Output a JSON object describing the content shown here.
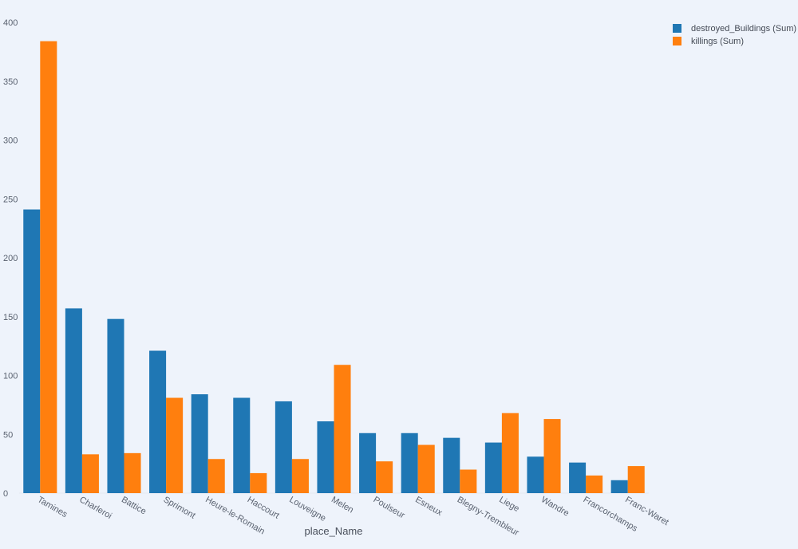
{
  "chart_data": {
    "type": "bar",
    "xlabel": "place_Name",
    "ylabel": "",
    "ylim": [
      0,
      400
    ],
    "yticks": [
      0,
      50,
      100,
      150,
      200,
      250,
      300,
      350,
      400
    ],
    "grid": false,
    "legend_position": "top-right",
    "categories": [
      "Tamines",
      "Charleroi",
      "Battice",
      "Sprimont",
      "Heure-le-Romain",
      "Haccourt",
      "Louveigne",
      "Melen",
      "Poulseur",
      "Esneux",
      "Blegny-Trembleur",
      "Liege",
      "Wandre",
      "Francorchamps",
      "Franc-Waret"
    ],
    "series": [
      {
        "name": "destroyed_Buildings (Sum)",
        "color": "#1f77b4",
        "values": [
          241,
          157,
          148,
          121,
          84,
          81,
          78,
          61,
          51,
          51,
          47,
          43,
          31,
          26,
          11
        ]
      },
      {
        "name": "killings (Sum)",
        "color": "#ff7f0e",
        "values": [
          384,
          33,
          34,
          81,
          29,
          17,
          29,
          109,
          27,
          41,
          20,
          68,
          63,
          15,
          23
        ]
      }
    ]
  }
}
